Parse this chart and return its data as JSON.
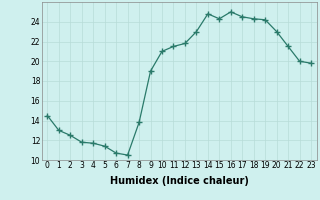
{
  "x": [
    0,
    1,
    2,
    3,
    4,
    5,
    6,
    7,
    8,
    9,
    10,
    11,
    12,
    13,
    14,
    15,
    16,
    17,
    18,
    19,
    20,
    21,
    22,
    23
  ],
  "y": [
    14.5,
    13.0,
    12.5,
    11.8,
    11.7,
    11.4,
    10.7,
    10.5,
    13.8,
    19.0,
    21.0,
    21.5,
    21.8,
    23.0,
    24.8,
    24.3,
    25.0,
    24.5,
    24.3,
    24.2,
    23.0,
    21.5,
    20.0,
    19.8
  ],
  "xlabel": "Humidex (Indice chaleur)",
  "line_color": "#2a7a6a",
  "marker": "+",
  "marker_size": 4,
  "bg_color": "#cff0ee",
  "grid_color": "#b8dcd8",
  "xlim": [
    -0.5,
    23.5
  ],
  "ylim": [
    10,
    26
  ],
  "yticks": [
    10,
    12,
    14,
    16,
    18,
    20,
    22,
    24
  ],
  "xticks": [
    0,
    1,
    2,
    3,
    4,
    5,
    6,
    7,
    8,
    9,
    10,
    11,
    12,
    13,
    14,
    15,
    16,
    17,
    18,
    19,
    20,
    21,
    22,
    23
  ],
  "tick_fontsize": 5.5,
  "xlabel_fontsize": 7
}
